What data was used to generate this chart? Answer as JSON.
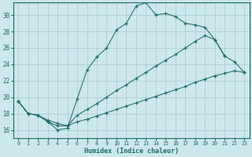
{
  "xlabel": "Humidex (Indice chaleur)",
  "background_color": "#cde8ec",
  "grid_color": "#a8cdd4",
  "line_color": "#1a6b6b",
  "xlim": [
    -0.5,
    23.5
  ],
  "ylim": [
    15.0,
    31.5
  ],
  "yticks": [
    16,
    18,
    20,
    22,
    24,
    26,
    28,
    30
  ],
  "xticks": [
    0,
    1,
    2,
    3,
    4,
    5,
    6,
    7,
    8,
    9,
    10,
    11,
    12,
    13,
    14,
    15,
    16,
    17,
    18,
    19,
    20,
    21,
    22,
    23
  ],
  "line1_x": [
    0,
    1,
    2,
    3,
    4,
    5,
    6,
    7,
    8,
    9,
    10,
    11,
    12,
    13,
    14,
    15,
    16,
    17,
    18,
    19,
    20,
    21
  ],
  "line1_y": [
    19.5,
    18.0,
    17.8,
    17.0,
    16.0,
    16.2,
    19.8,
    23.3,
    24.9,
    26.0,
    28.2,
    29.0,
    31.1,
    31.5,
    30.0,
    30.2,
    29.8,
    29.0,
    28.8,
    28.5,
    27.0,
    25.0
  ],
  "line2_x": [
    0,
    1,
    2,
    3,
    4,
    5,
    6,
    7,
    8,
    9,
    10,
    11,
    12,
    13,
    14,
    15,
    16,
    17,
    18,
    19,
    20,
    21,
    22,
    23
  ],
  "line2_y": [
    19.5,
    18.0,
    17.8,
    17.0,
    16.5,
    16.5,
    17.8,
    18.5,
    19.2,
    20.0,
    20.8,
    21.5,
    22.3,
    23.0,
    23.8,
    24.5,
    25.2,
    26.0,
    26.8,
    27.5,
    27.0,
    25.0,
    24.3,
    23.0
  ],
  "line3_x": [
    0,
    1,
    2,
    3,
    4,
    5,
    6,
    7,
    8,
    9,
    10,
    11,
    12,
    13,
    14,
    15,
    16,
    17,
    18,
    19,
    20,
    21,
    22,
    23
  ],
  "line3_y": [
    19.5,
    18.0,
    17.8,
    17.2,
    16.8,
    16.5,
    17.0,
    17.3,
    17.7,
    18.1,
    18.5,
    18.9,
    19.3,
    19.7,
    20.1,
    20.5,
    20.9,
    21.3,
    21.8,
    22.2,
    22.6,
    22.9,
    23.2,
    23.0
  ]
}
